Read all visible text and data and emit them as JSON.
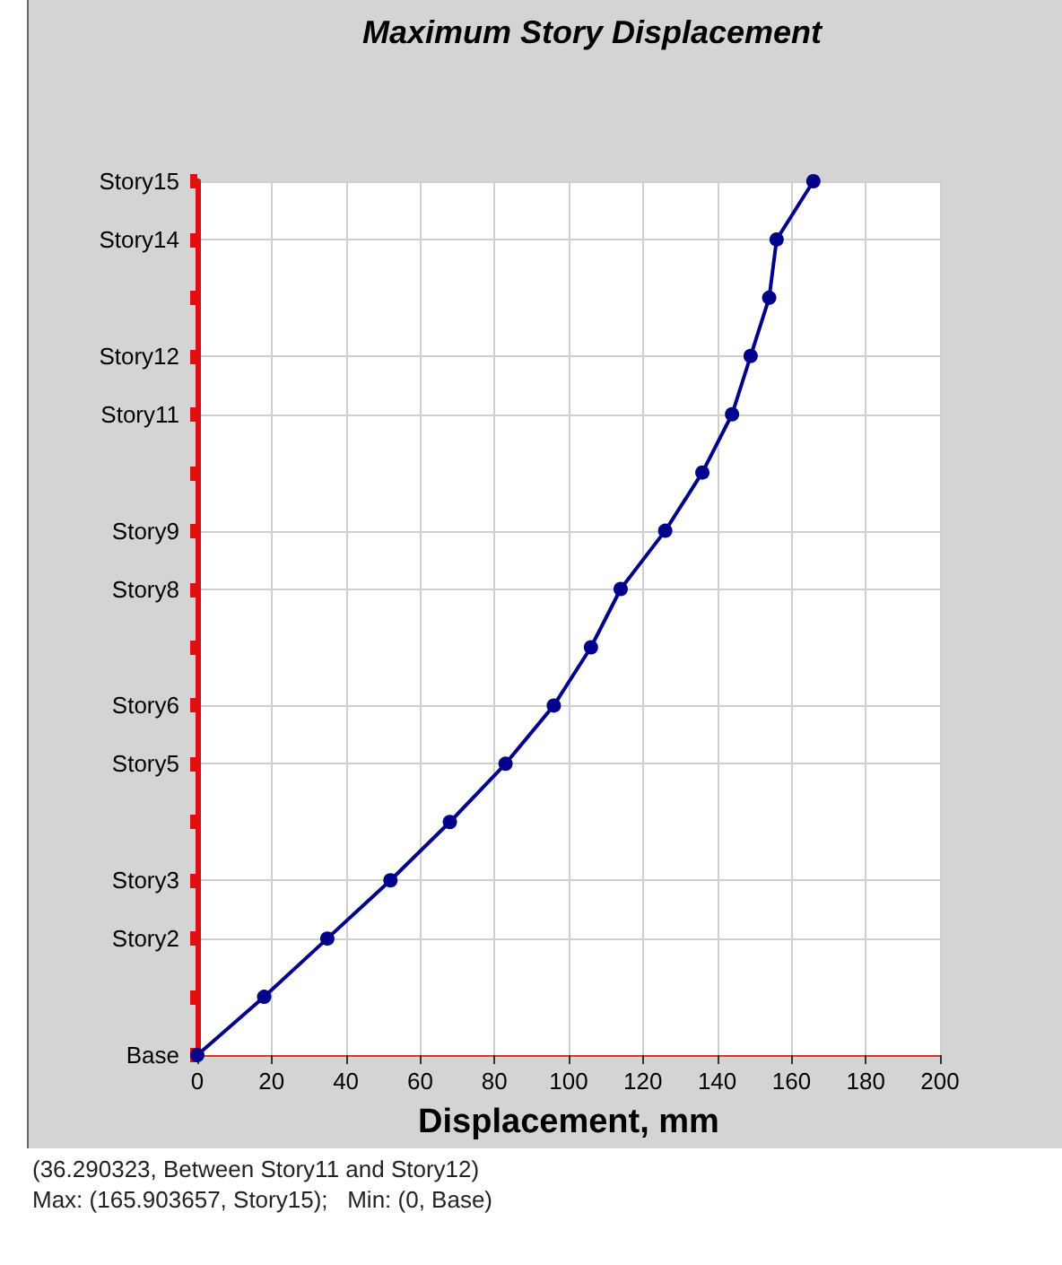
{
  "chart_data": {
    "type": "line",
    "orientation": "horizontal",
    "title": "Maximum Story Displacement",
    "xlabel": "Displacement, mm",
    "categories": [
      "Story15",
      "Story14",
      null,
      "Story12",
      "Story11",
      null,
      "Story9",
      "Story8",
      null,
      "Story6",
      "Story5",
      null,
      "Story3",
      "Story2",
      null,
      "Base"
    ],
    "series": [
      {
        "color": "#00008b",
        "values": [
          165.9,
          156,
          154,
          149,
          144,
          136,
          126,
          114,
          106,
          96,
          83,
          68,
          52,
          35,
          18,
          0
        ]
      }
    ],
    "xlim": [
      0,
      200
    ],
    "xticks": [
      0,
      20,
      40,
      60,
      80,
      100,
      120,
      140,
      160,
      180,
      200
    ],
    "grid": true,
    "marker": "circle",
    "line_style": "solid",
    "annotations": [
      "(36.290323, Between Story11 and Story12)",
      "Max: (165.903657, Story15);   Min: (0, Base)"
    ]
  }
}
